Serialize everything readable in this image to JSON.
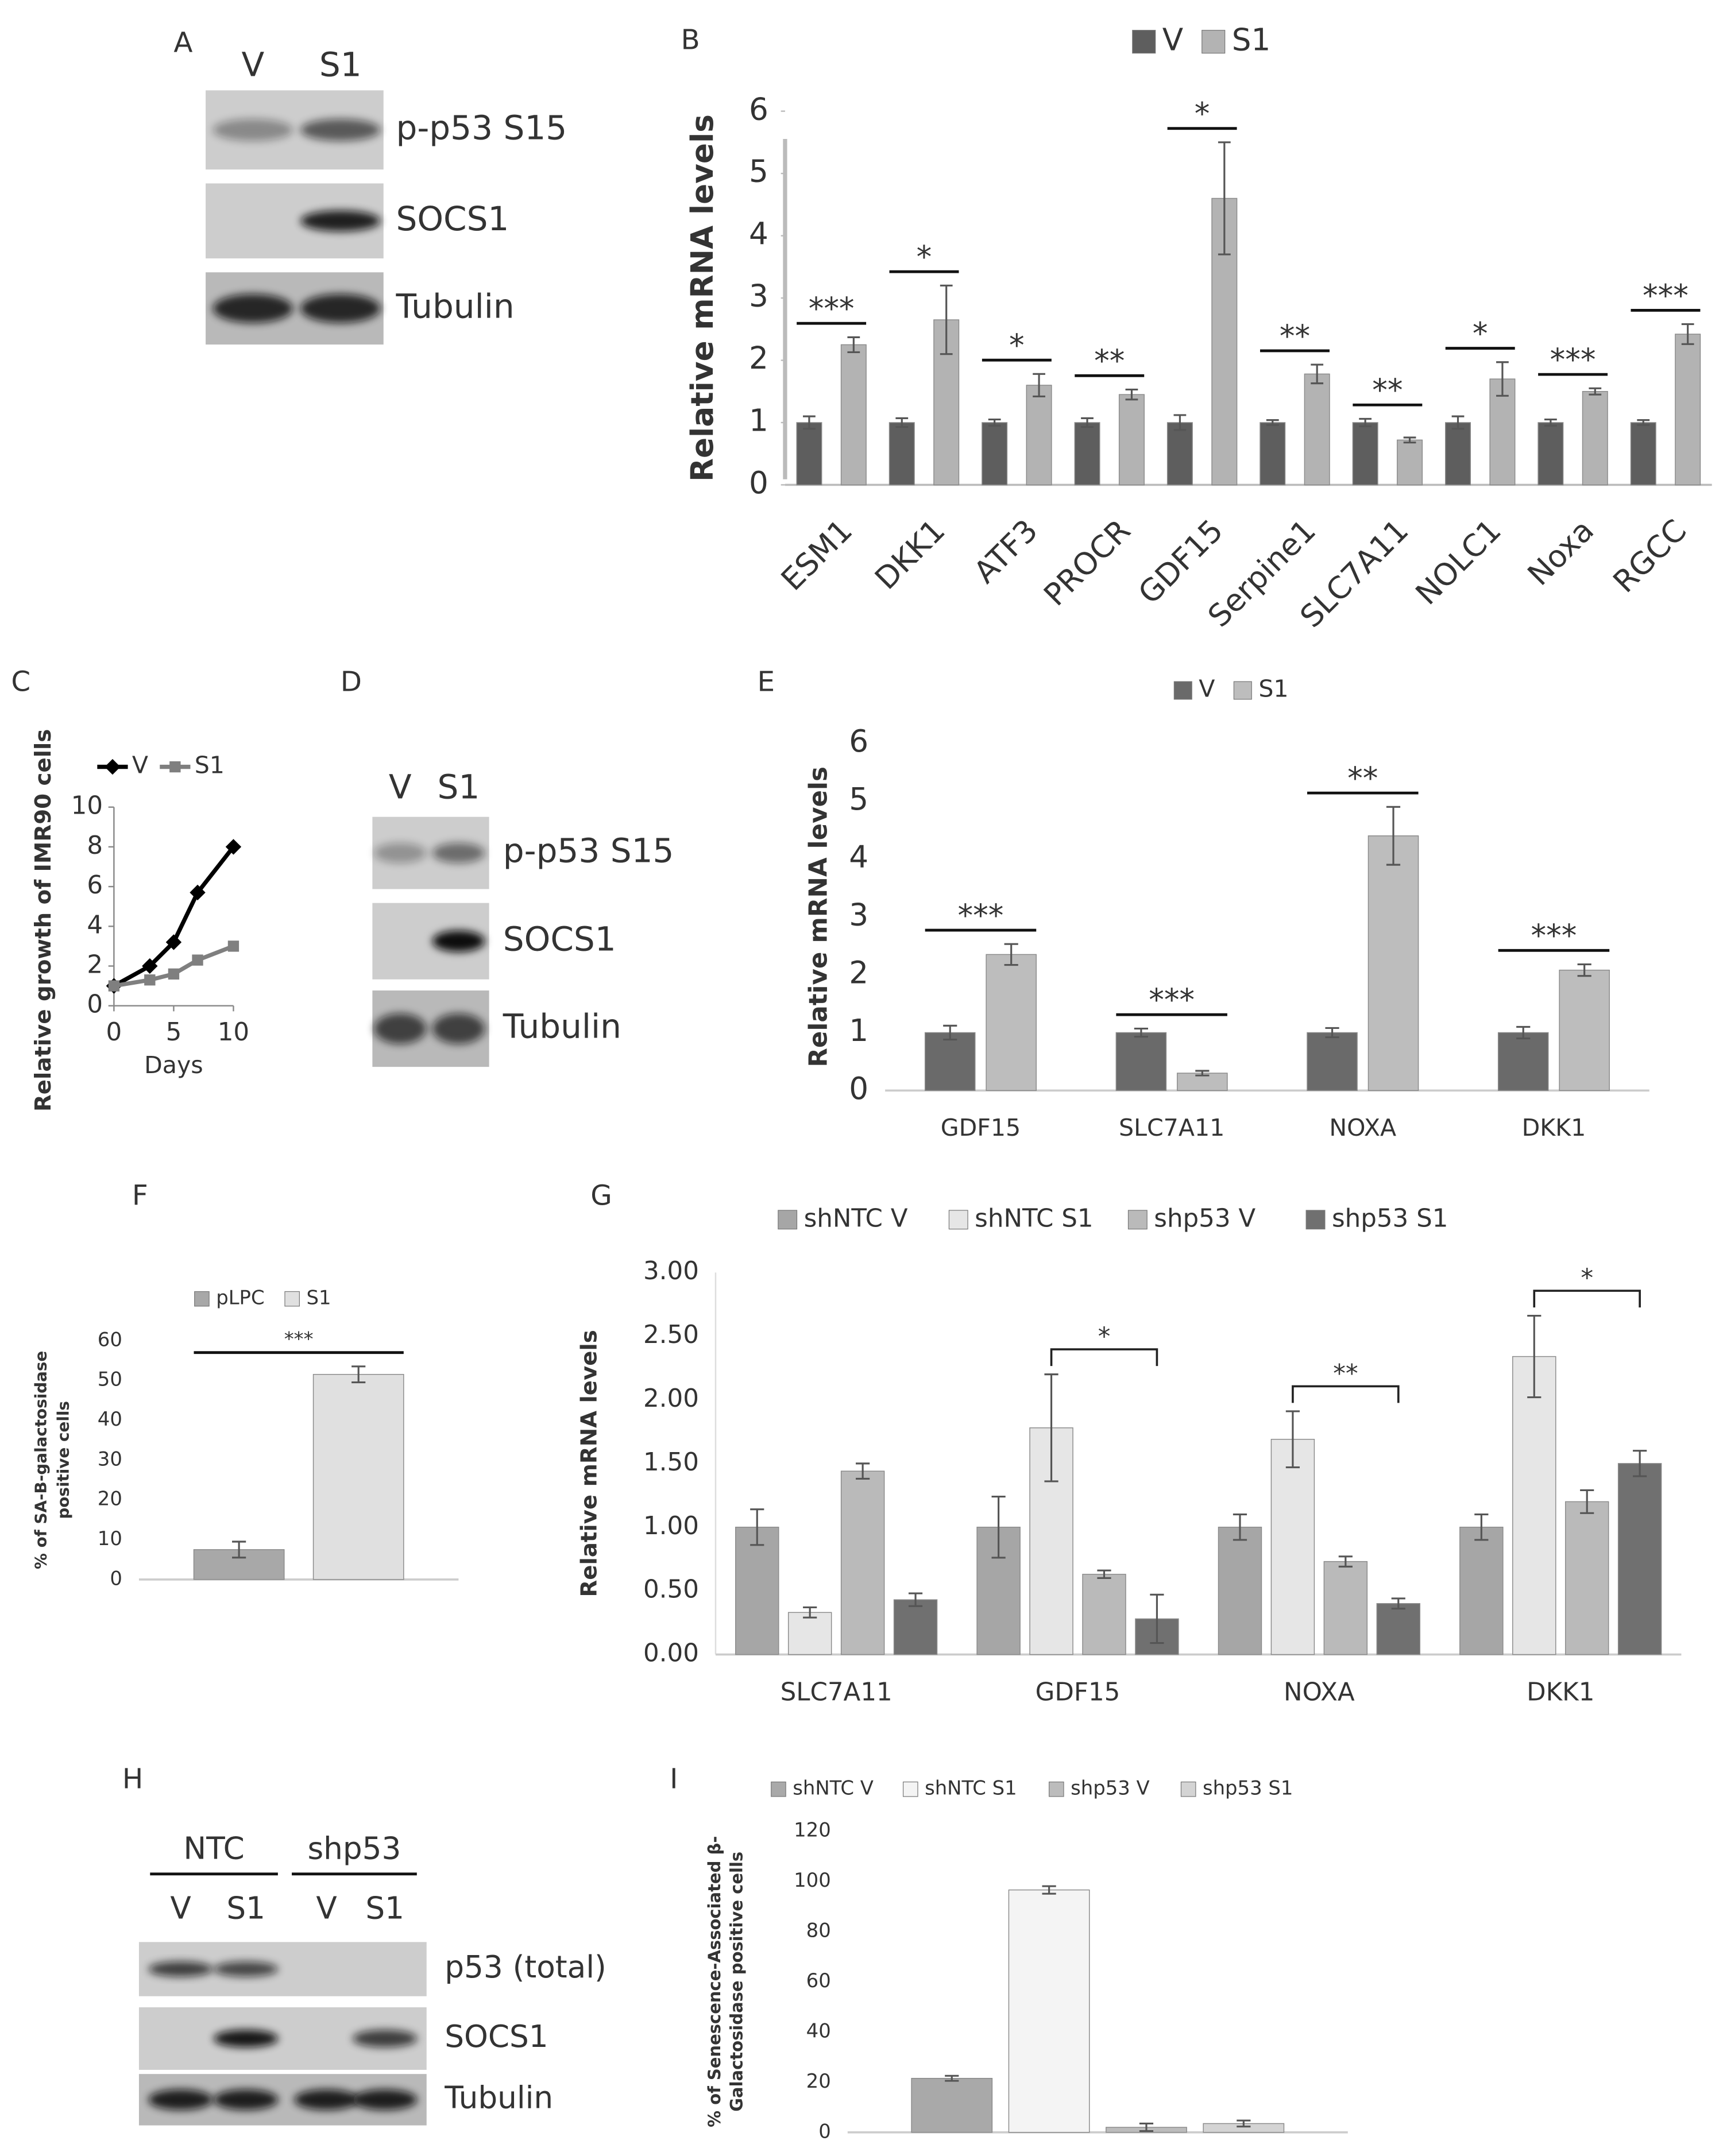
{
  "chart_data": [
    {
      "type": "bar",
      "panel_label": "B",
      "y_label": "Relative mRNA levels",
      "categories": [
        "ESM1",
        "DKK1",
        "ATF3",
        "PROCR",
        "GDF15",
        "Serpine1",
        "SLC7A11",
        "NOLC1",
        "Noxa",
        "RGCC"
      ],
      "series": [
        {
          "name": "V",
          "color": "#5e5e5e",
          "values": [
            1,
            1,
            1,
            1,
            1,
            1,
            1,
            1,
            1,
            1
          ],
          "error": [
            0.1,
            0.07,
            0.05,
            0.07,
            0.12,
            0.04,
            0.06,
            0.1,
            0.05,
            0.04
          ]
        },
        {
          "name": "S1",
          "color": "#b3b3b3",
          "values": [
            2.25,
            2.65,
            1.6,
            1.45,
            4.6,
            1.78,
            0.72,
            1.7,
            1.5,
            2.42
          ],
          "error": [
            0.12,
            0.55,
            0.18,
            0.08,
            0.9,
            0.15,
            0.04,
            0.27,
            0.05,
            0.16
          ]
        }
      ],
      "significance": [
        "***",
        "*",
        "*",
        "**",
        "*",
        "**",
        "**",
        "*",
        "***",
        "***"
      ],
      "ylim": [
        0,
        6
      ],
      "yticks": [
        0,
        1,
        2,
        3,
        4,
        5,
        6
      ]
    },
    {
      "type": "line",
      "panel_label": "C",
      "y_label": "Relative growth of IMR90 cells",
      "x_label": "Days",
      "x": [
        0,
        3,
        5,
        7,
        10
      ],
      "series": [
        {
          "name": "V",
          "color": "#000000",
          "values": [
            1,
            2,
            3.2,
            5.7,
            8
          ]
        },
        {
          "name": "S1",
          "color": "#7f7f7f",
          "values": [
            1,
            1.3,
            1.6,
            2.3,
            3
          ]
        }
      ],
      "xlim": [
        0,
        10
      ],
      "xticks": [
        0,
        5,
        10
      ],
      "ylim": [
        0,
        10
      ],
      "yticks": [
        0,
        2,
        4,
        6,
        8,
        10
      ]
    },
    {
      "type": "bar",
      "panel_label": "E",
      "y_label": "Relative mRNA levels",
      "categories": [
        "GDF15",
        "SLC7A11",
        "NOXA",
        "DKK1"
      ],
      "series": [
        {
          "name": "V",
          "color": "#6a6a6a",
          "values": [
            1,
            1,
            1,
            1
          ],
          "error": [
            0.12,
            0.07,
            0.08,
            0.1
          ]
        },
        {
          "name": "S1",
          "color": "#bdbdbd",
          "values": [
            2.35,
            0.3,
            4.4,
            2.08
          ],
          "error": [
            0.18,
            0.04,
            0.5,
            0.1
          ]
        }
      ],
      "significance": [
        "***",
        "***",
        "**",
        "***"
      ],
      "ylim": [
        0,
        6
      ],
      "yticks": [
        0,
        1,
        2,
        3,
        4,
        5,
        6
      ]
    },
    {
      "type": "bar",
      "panel_label": "F",
      "y_label": [
        "% of SA-B-galactosidase",
        "positive cells"
      ],
      "categories": [
        null
      ],
      "series": [
        {
          "name": "pLPC",
          "color": "#a8a8a8",
          "values": [
            7.5
          ],
          "error": [
            2
          ]
        },
        {
          "name": "S1",
          "color": "#e0e0e0",
          "values": [
            51.5
          ],
          "error": [
            2
          ]
        }
      ],
      "significance": [
        "***"
      ],
      "ylim": [
        0,
        60
      ],
      "yticks": [
        0,
        10,
        20,
        30,
        40,
        50,
        60
      ]
    },
    {
      "type": "bar",
      "panel_label": "G",
      "y_label": "Relative mRNA levels",
      "categories": [
        "SLC7A11",
        "GDF15",
        "NOXA",
        "DKK1"
      ],
      "series": [
        {
          "name": "shNTC V",
          "color": "#a6a6a6",
          "values": [
            1.0,
            1.0,
            1.0,
            1.0
          ],
          "error": [
            0.14,
            0.24,
            0.1,
            0.1
          ]
        },
        {
          "name": "shNTC S1",
          "color": "#e6e6e6",
          "values": [
            0.33,
            1.78,
            1.69,
            2.34
          ],
          "error": [
            0.04,
            0.42,
            0.22,
            0.32
          ]
        },
        {
          "name": "shp53 V",
          "color": "#bababa",
          "values": [
            1.44,
            0.63,
            0.73,
            1.2
          ],
          "error": [
            0.06,
            0.03,
            0.04,
            0.09
          ]
        },
        {
          "name": "shp53 S1",
          "color": "#707070",
          "values": [
            0.43,
            0.28,
            0.4,
            1.5
          ],
          "error": [
            0.05,
            0.19,
            0.04,
            0.1
          ]
        }
      ],
      "significance": [
        null,
        "*",
        "**",
        "*"
      ],
      "ylim": [
        0,
        3
      ],
      "yticks": [
        {
          "value": 0,
          "label": "0.00"
        },
        {
          "value": 0.5,
          "label": "0.50"
        },
        {
          "value": 1,
          "label": "1.00"
        },
        {
          "value": 1.5,
          "label": "1.50"
        },
        {
          "value": 2,
          "label": "2.00"
        },
        {
          "value": 2.5,
          "label": "2.50"
        },
        {
          "value": 3,
          "label": "3.00"
        }
      ]
    },
    {
      "type": "bar",
      "panel_label": "I",
      "y_label": [
        "% of Senescence-Associated β-",
        "Galactosidase positive cells"
      ],
      "categories": [
        null
      ],
      "series": [
        {
          "name": "shNTC V",
          "color": "#a9a9a9",
          "values": [
            21.5
          ],
          "error": [
            1
          ]
        },
        {
          "name": "shNTC S1",
          "color": "#f4f4f4",
          "values": [
            96.5
          ],
          "error": [
            1.5
          ]
        },
        {
          "name": "shp53 V",
          "color": "#bcbcbc",
          "values": [
            2
          ],
          "error": [
            1.5
          ]
        },
        {
          "name": "shp53 S1",
          "color": "#d4d4d4",
          "values": [
            3.5
          ],
          "error": [
            1.2
          ]
        }
      ],
      "ylim": [
        0,
        120
      ],
      "yticks": [
        0,
        20,
        40,
        60,
        80,
        100,
        120
      ]
    }
  ],
  "blots": [
    {
      "panel_label": "A",
      "lanes": [
        "V",
        "S1"
      ],
      "rows": [
        "p-p53 S15",
        "SOCS1",
        "Tubulin"
      ]
    },
    {
      "panel_label": "D",
      "lanes": [
        "V",
        "S1"
      ],
      "rows": [
        "p-p53 S15",
        "SOCS1",
        "Tubulin"
      ]
    },
    {
      "panel_label": "H",
      "groups": [
        "NTC",
        "shp53"
      ],
      "lanes": [
        "V",
        "S1",
        "V",
        "S1"
      ],
      "rows": [
        "p53 (total)",
        "SOCS1",
        "Tubulin"
      ]
    }
  ]
}
